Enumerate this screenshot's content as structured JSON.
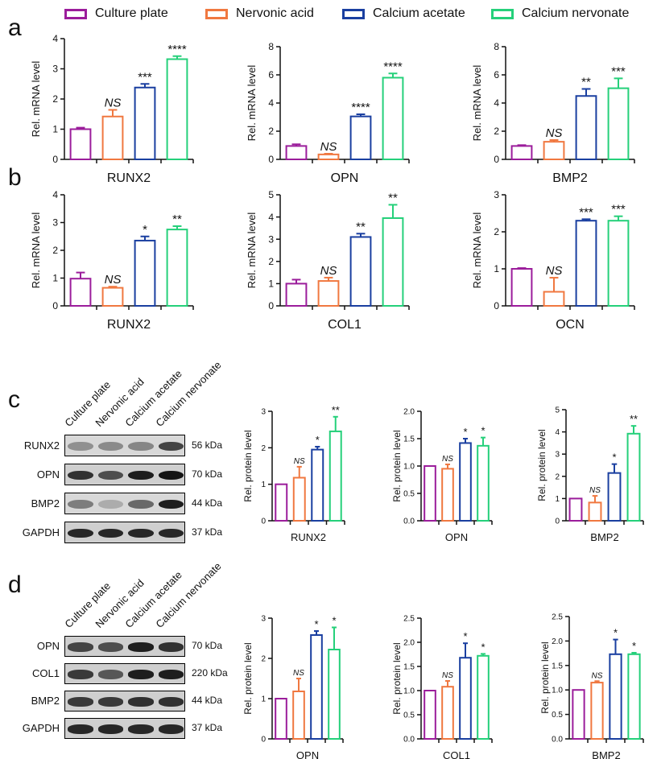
{
  "colors": {
    "culture": "#9b1d9b",
    "nervonic": "#f07840",
    "acetate": "#1a3fa0",
    "nervonate": "#25d07a",
    "axis": "#111111"
  },
  "legend": {
    "items": [
      {
        "label": "Culture plate",
        "color": "#9b1d9b"
      },
      {
        "label": "Nervonic acid",
        "color": "#f07840"
      },
      {
        "label": "Calcium acetate",
        "color": "#1a3fa0"
      },
      {
        "label": "Calcium nervonate",
        "color": "#25d07a"
      }
    ]
  },
  "panels": {
    "a": "a",
    "b": "b",
    "c": "c",
    "d": "d"
  },
  "blots": {
    "c": {
      "lanes": [
        "Culture plate",
        "Nervonic acid",
        "Calcium acetate",
        "Calcium nervonate"
      ],
      "rows": [
        {
          "protein": "RUNX2",
          "kda": "56 kDa",
          "intensity": [
            0.35,
            0.38,
            0.4,
            0.75
          ]
        },
        {
          "protein": "OPN",
          "kda": "70 kDa",
          "intensity": [
            0.85,
            0.7,
            0.95,
            1.0
          ]
        },
        {
          "protein": "BMP2",
          "kda": "44 kDa",
          "intensity": [
            0.45,
            0.2,
            0.55,
            0.95
          ]
        },
        {
          "protein": "GAPDH",
          "kda": "37 kDa",
          "intensity": [
            0.9,
            0.9,
            0.9,
            0.9
          ]
        }
      ]
    },
    "d": {
      "lanes": [
        "Culture plate",
        "Nervonic acid",
        "Calcium acetate",
        "Calcium nervonate"
      ],
      "rows": [
        {
          "protein": "OPN",
          "kda": "70 kDa",
          "intensity": [
            0.75,
            0.7,
            0.95,
            0.85
          ]
        },
        {
          "protein": "COL1",
          "kda": "220 kDa",
          "intensity": [
            0.8,
            0.65,
            0.95,
            0.95
          ]
        },
        {
          "protein": "BMP2",
          "kda": "44 kDa",
          "intensity": [
            0.8,
            0.8,
            0.85,
            0.85
          ]
        },
        {
          "protein": "GAPDH",
          "kda": "37 kDa",
          "intensity": [
            0.9,
            0.9,
            0.9,
            0.9
          ]
        }
      ]
    }
  },
  "chart_data": [
    {
      "id": "a1",
      "type": "bar",
      "xlabel": "RUNX2",
      "ylabel": "Rel. mRNA level",
      "ylim": [
        0,
        4
      ],
      "yticks": [
        0,
        1,
        2,
        3,
        4
      ],
      "categories": [
        "Culture plate",
        "Nervonic acid",
        "Calcium acetate",
        "Calcium nervonate"
      ],
      "values": [
        1.0,
        1.42,
        2.38,
        3.32
      ],
      "errors": [
        0.05,
        0.22,
        0.12,
        0.1
      ],
      "annotations": [
        "",
        "NS",
        "***",
        "****"
      ]
    },
    {
      "id": "a2",
      "type": "bar",
      "xlabel": "OPN",
      "ylabel": "Rel. mRNA level",
      "ylim": [
        0,
        8
      ],
      "yticks": [
        0,
        2,
        4,
        6,
        8
      ],
      "categories": [
        "Culture plate",
        "Nervonic acid",
        "Calcium acetate",
        "Calcium nervonate"
      ],
      "values": [
        0.95,
        0.35,
        3.05,
        5.8
      ],
      "errors": [
        0.12,
        0.05,
        0.15,
        0.3
      ],
      "annotations": [
        "",
        "NS",
        "****",
        "****"
      ]
    },
    {
      "id": "a3",
      "type": "bar",
      "xlabel": "BMP2",
      "ylabel": "Rel. mRNA level",
      "ylim": [
        0,
        8
      ],
      "yticks": [
        0,
        2,
        4,
        6,
        8
      ],
      "categories": [
        "Culture plate",
        "Nervonic acid",
        "Calcium acetate",
        "Calcium nervonate"
      ],
      "values": [
        0.95,
        1.25,
        4.5,
        5.05
      ],
      "errors": [
        0.06,
        0.12,
        0.5,
        0.7
      ],
      "annotations": [
        "",
        "NS",
        "**",
        "***"
      ]
    },
    {
      "id": "b1",
      "type": "bar",
      "xlabel": "RUNX2",
      "ylabel": "Rel. mRNA level",
      "ylim": [
        0,
        4
      ],
      "yticks": [
        0,
        1,
        2,
        3,
        4
      ],
      "categories": [
        "Culture plate",
        "Nervonic acid",
        "Calcium acetate",
        "Calcium nervonate"
      ],
      "values": [
        0.98,
        0.65,
        2.35,
        2.75
      ],
      "errors": [
        0.22,
        0.04,
        0.15,
        0.12
      ],
      "annotations": [
        "",
        "NS",
        "*",
        "**"
      ]
    },
    {
      "id": "b2",
      "type": "bar",
      "xlabel": "COL1",
      "ylabel": "Rel. mRNA level",
      "ylim": [
        0,
        5
      ],
      "yticks": [
        0,
        1,
        2,
        3,
        4,
        5
      ],
      "categories": [
        "Culture plate",
        "Nervonic acid",
        "Calcium acetate",
        "Calcium nervonate"
      ],
      "values": [
        1.0,
        1.12,
        3.1,
        3.95
      ],
      "errors": [
        0.18,
        0.15,
        0.15,
        0.6
      ],
      "annotations": [
        "",
        "NS",
        "**",
        "**"
      ]
    },
    {
      "id": "b3",
      "type": "bar",
      "xlabel": "OCN",
      "ylabel": "Rel. mRNA level",
      "ylim": [
        0,
        3
      ],
      "yticks": [
        0,
        1,
        2,
        3
      ],
      "categories": [
        "Culture plate",
        "Nervonic acid",
        "Calcium acetate",
        "Calcium nervonate"
      ],
      "values": [
        1.0,
        0.38,
        2.3,
        2.3
      ],
      "errors": [
        0.02,
        0.38,
        0.04,
        0.12
      ],
      "annotations": [
        "",
        "NS",
        "***",
        "***"
      ]
    },
    {
      "id": "c1",
      "type": "bar",
      "xlabel": "RUNX2",
      "ylabel": "Rel. protein level",
      "ylim": [
        0,
        3
      ],
      "yticks": [
        0,
        1,
        2,
        3
      ],
      "categories": [
        "Culture plate",
        "Nervonic acid",
        "Calcium acetate",
        "Calcium nervonate"
      ],
      "values": [
        1.0,
        1.18,
        1.95,
        2.45
      ],
      "errors": [
        0,
        0.3,
        0.08,
        0.4
      ],
      "annotations": [
        "",
        "NS",
        "*",
        "**"
      ]
    },
    {
      "id": "c2",
      "type": "bar",
      "xlabel": "OPN",
      "ylabel": "Rel. protein level",
      "ylim": [
        0,
        2.0
      ],
      "yticks": [
        0,
        0.5,
        1.0,
        1.5,
        2.0
      ],
      "categories": [
        "Culture plate",
        "Nervonic acid",
        "Calcium acetate",
        "Calcium nervonate"
      ],
      "values": [
        1.0,
        0.95,
        1.42,
        1.37
      ],
      "errors": [
        0,
        0.08,
        0.08,
        0.15
      ],
      "annotations": [
        "",
        "NS",
        "*",
        "*"
      ]
    },
    {
      "id": "c3",
      "type": "bar",
      "xlabel": "BMP2",
      "ylabel": "Rel. protein level",
      "ylim": [
        0,
        5
      ],
      "yticks": [
        0,
        1,
        2,
        3,
        4,
        5
      ],
      "categories": [
        "Culture plate",
        "Nervonic acid",
        "Calcium acetate",
        "Calcium nervonate"
      ],
      "values": [
        1.0,
        0.82,
        2.15,
        3.92
      ],
      "errors": [
        0,
        0.3,
        0.4,
        0.35
      ],
      "annotations": [
        "",
        "NS",
        "*",
        "**"
      ]
    },
    {
      "id": "d1",
      "type": "bar",
      "xlabel": "OPN",
      "ylabel": "Rel. protein level",
      "ylim": [
        0,
        3
      ],
      "yticks": [
        0,
        1,
        2,
        3
      ],
      "categories": [
        "Culture plate",
        "Nervonic acid",
        "Calcium acetate",
        "Calcium nervonate"
      ],
      "values": [
        1.0,
        1.18,
        2.58,
        2.22
      ],
      "errors": [
        0,
        0.32,
        0.1,
        0.55
      ],
      "annotations": [
        "",
        "NS",
        "*",
        "*"
      ]
    },
    {
      "id": "d2",
      "type": "bar",
      "xlabel": "COL1",
      "ylabel": "Rel. protein level",
      "ylim": [
        0,
        2.5
      ],
      "yticks": [
        0,
        0.5,
        1.0,
        1.5,
        2.0,
        2.5
      ],
      "categories": [
        "Culture plate",
        "Nervonic acid",
        "Calcium acetate",
        "Calcium nervonate"
      ],
      "values": [
        1.0,
        1.08,
        1.68,
        1.72
      ],
      "errors": [
        0,
        0.12,
        0.3,
        0.04
      ],
      "annotations": [
        "",
        "NS",
        "*",
        "*"
      ]
    },
    {
      "id": "d3",
      "type": "bar",
      "xlabel": "BMP2",
      "ylabel": "Rel. protein level",
      "ylim": [
        0,
        2.5
      ],
      "yticks": [
        0,
        0.5,
        1.0,
        1.5,
        2.0,
        2.5
      ],
      "categories": [
        "Culture plate",
        "Nervonic acid",
        "Calcium acetate",
        "Calcium nervonate"
      ],
      "values": [
        1.0,
        1.15,
        1.73,
        1.73
      ],
      "errors": [
        0,
        0.03,
        0.3,
        0.03
      ],
      "annotations": [
        "",
        "NS",
        "*",
        "*"
      ]
    }
  ]
}
